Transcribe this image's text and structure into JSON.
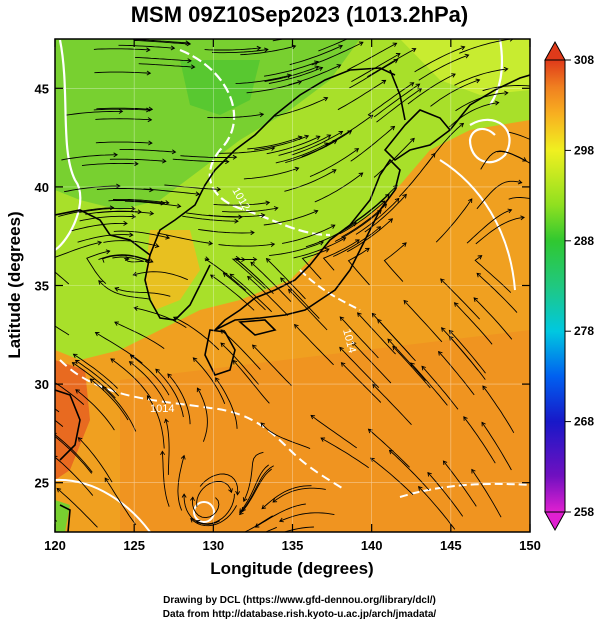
{
  "title": "MSM 09Z10Sep2023 (1013.2hPa)",
  "x_axis": {
    "label": "Longitude (degrees)",
    "range": [
      120,
      150
    ],
    "ticks": [
      120,
      125,
      130,
      135,
      140,
      145,
      150
    ]
  },
  "y_axis": {
    "label": "Latitude  (degrees)",
    "range": [
      22.5,
      47.5
    ],
    "ticks": [
      25,
      30,
      35,
      40,
      45
    ]
  },
  "colorbar": {
    "range": [
      258,
      308
    ],
    "ticks": [
      258,
      268,
      278,
      288,
      298,
      308
    ],
    "colors": [
      "#e020d0",
      "#7010c0",
      "#1818c8",
      "#0060f0",
      "#00c8e0",
      "#20c880",
      "#30c830",
      "#90e020",
      "#f0f020",
      "#f8b020",
      "#f08020",
      "#e03a1a"
    ]
  },
  "contour_labels": [
    "1012",
    "1014",
    "1014"
  ],
  "footer": {
    "line1": "Drawing by DCL (https://www.gfd-dennou.org/library/dcl/)",
    "line2": "Data from http://database.rish.kyoto-u.ac.jp/arch/jmadata/"
  }
}
